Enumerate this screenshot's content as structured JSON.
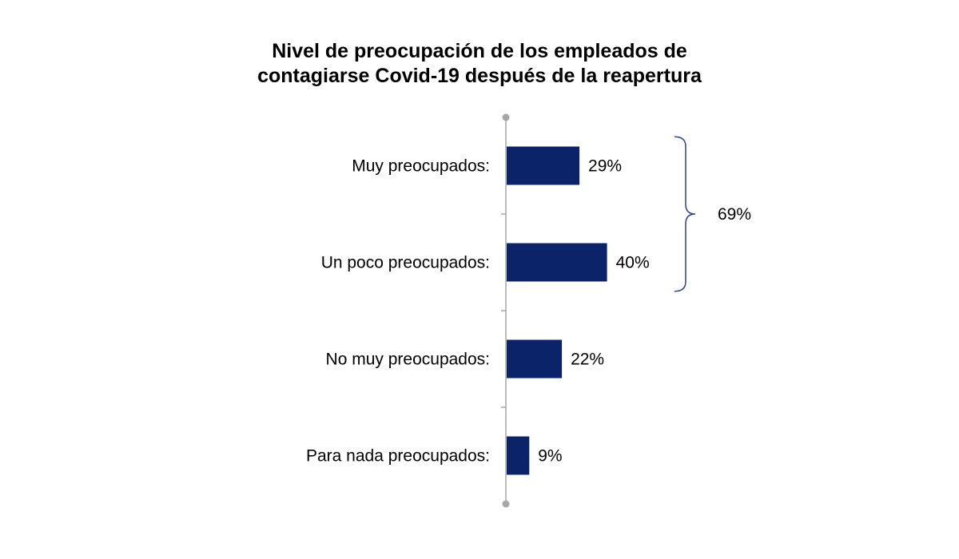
{
  "chart_data": {
    "type": "bar",
    "orientation": "horizontal",
    "title_lines": [
      "Nivel de preocupación de los empleados de",
      "contagiarse Covid-19 después de la reapertura"
    ],
    "categories": [
      "Muy preocupados:",
      "Un poco preocupados:",
      "No muy preocupados:",
      "Para nada preocupados:"
    ],
    "values": [
      29,
      40,
      22,
      9
    ],
    "value_labels": [
      "29%",
      "40%",
      "22%",
      "9%"
    ],
    "xlim": [
      0,
      100
    ],
    "grid": false,
    "legend": "none",
    "bar_color": "#0a2369",
    "axis_color": "#a6a6a6",
    "bracket": {
      "categories": [
        "Muy preocupados:",
        "Un poco preocupados:"
      ],
      "value": 69,
      "label": "69%",
      "color": "#2e4488"
    }
  }
}
